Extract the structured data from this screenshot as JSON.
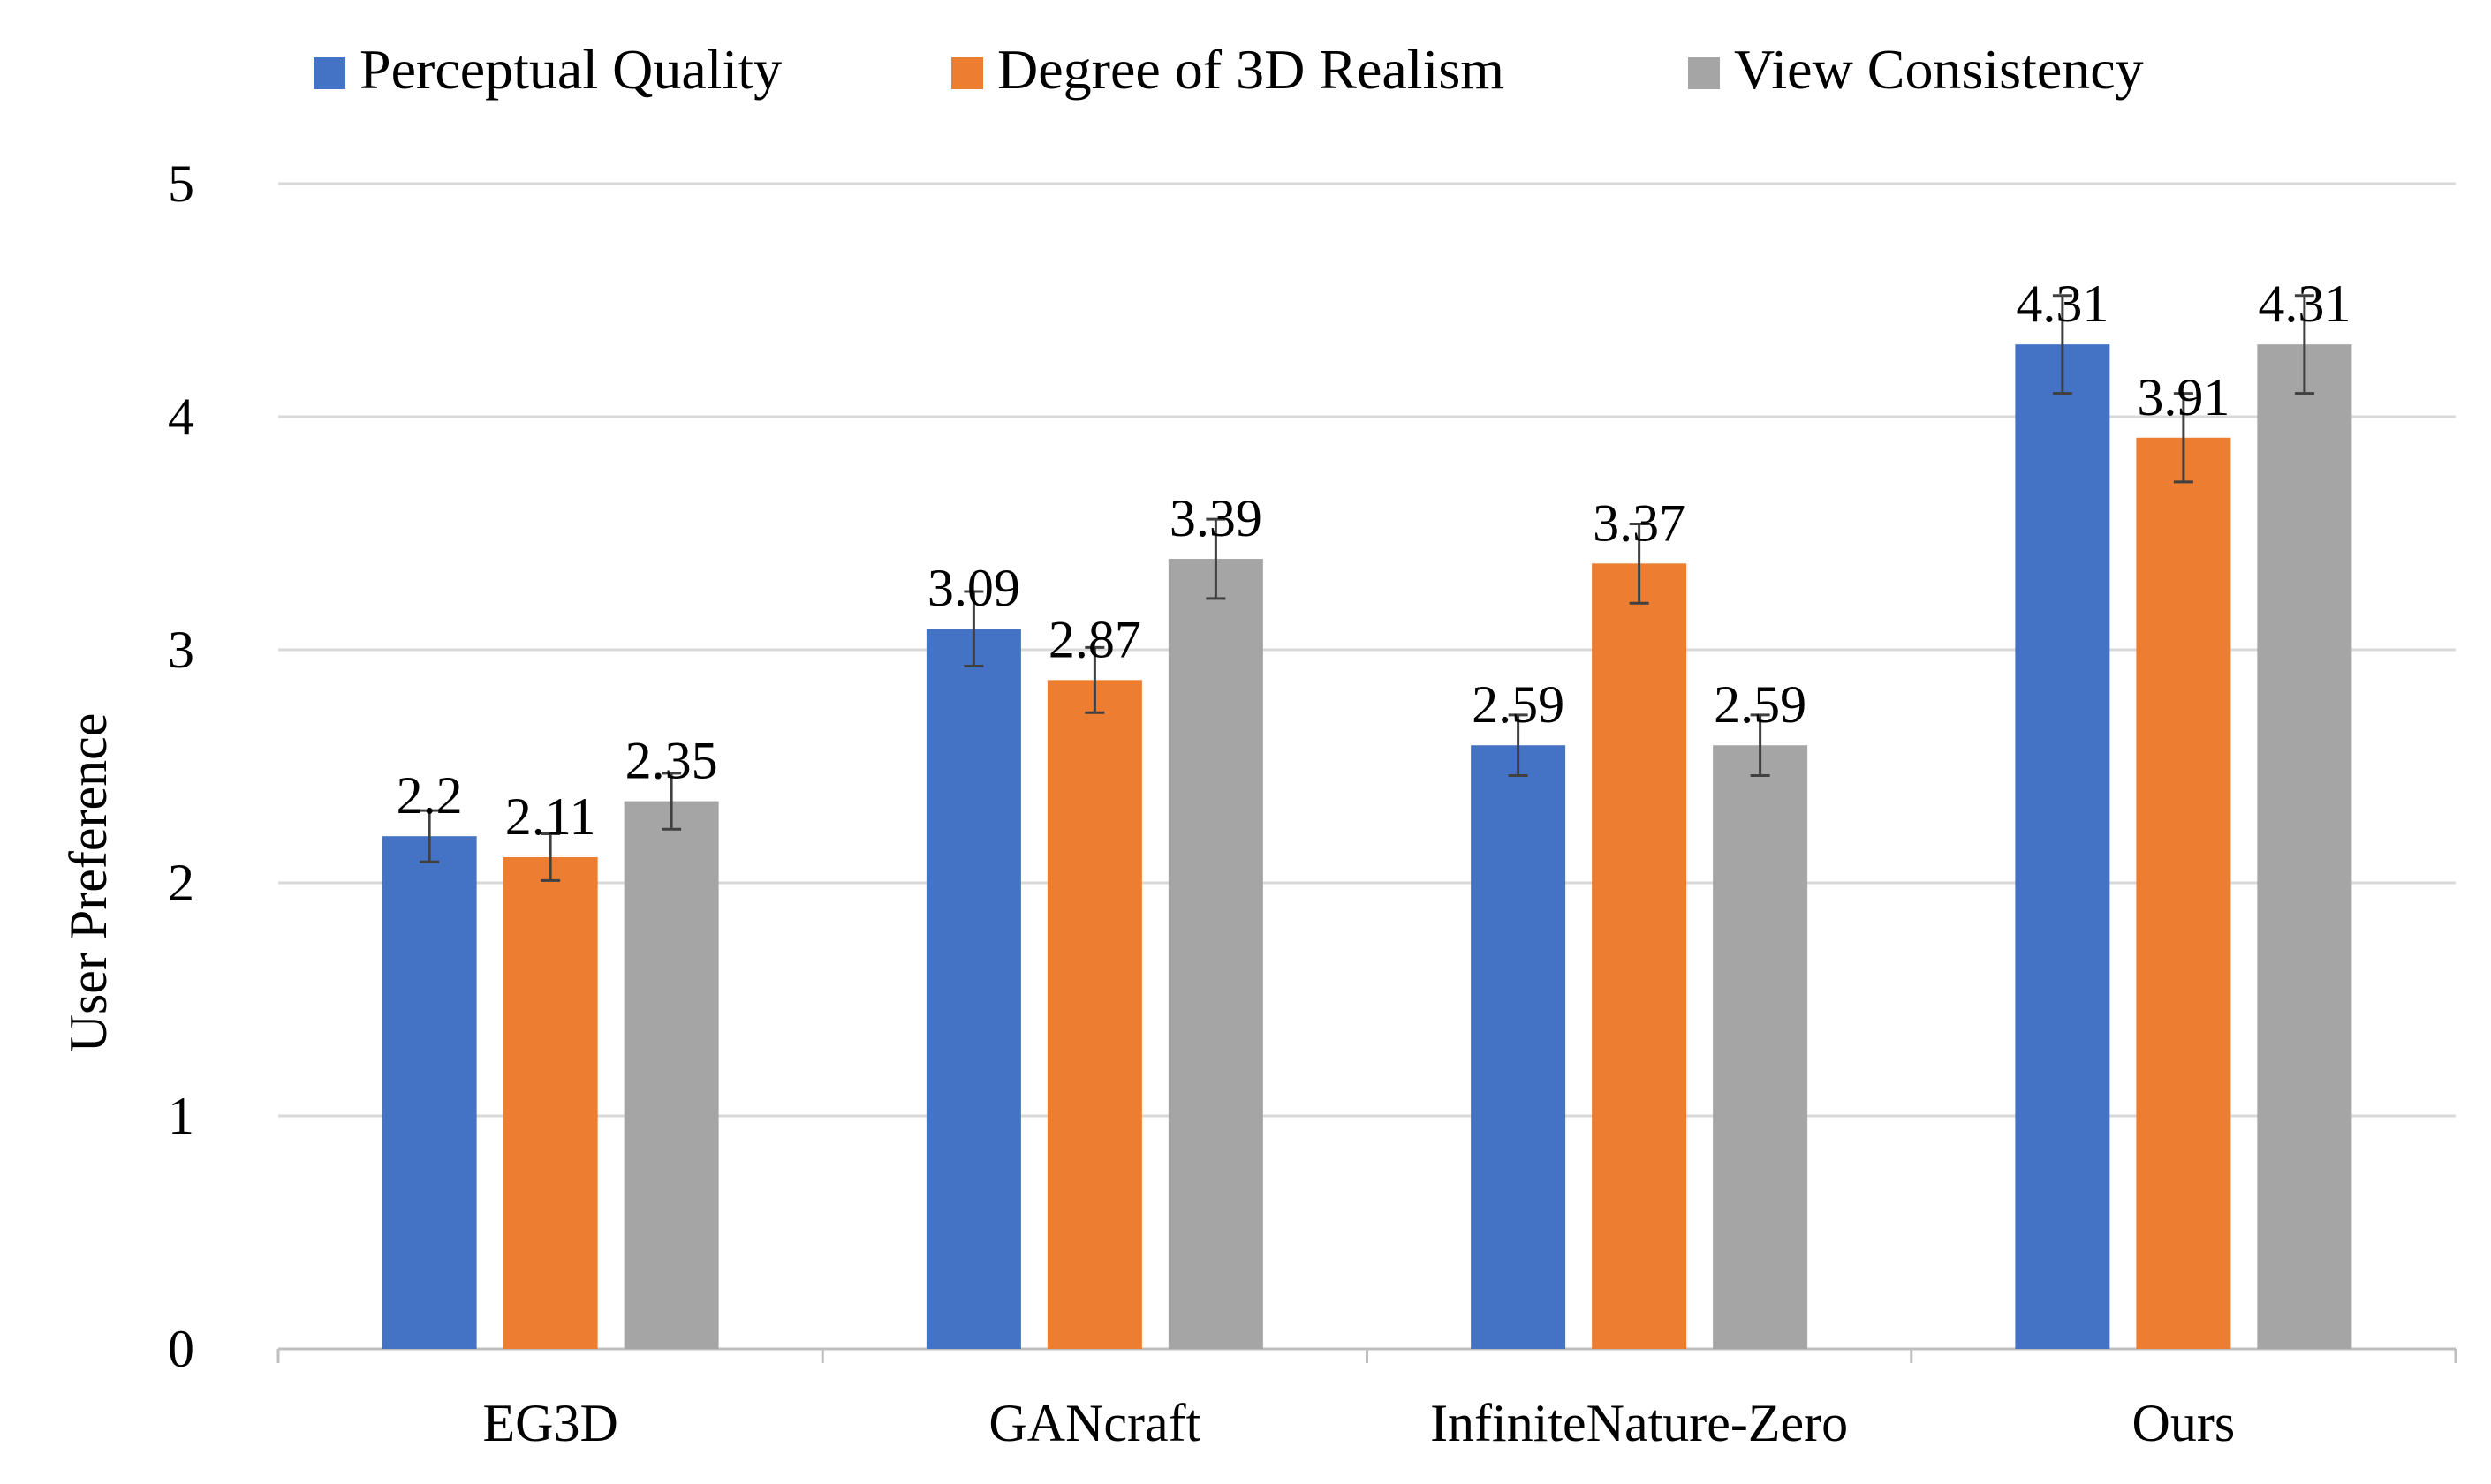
{
  "chart_data": {
    "type": "bar",
    "title": "",
    "xlabel": "",
    "ylabel": "User Preference",
    "ylim": [
      0,
      5
    ],
    "yticks": [
      0,
      1,
      2,
      3,
      4,
      5
    ],
    "grid": true,
    "legend_position": "top",
    "categories": [
      "EG3D",
      "GANcraft",
      "InfiniteNature-Zero",
      "Ours"
    ],
    "series": [
      {
        "name": "Perceptual Quality",
        "color": "#4472C4",
        "values": [
          2.2,
          3.09,
          2.59,
          4.31
        ],
        "labels": [
          "2.2",
          "3.09",
          "2.59",
          "4.31"
        ],
        "errors": [
          0.11,
          0.16,
          0.13,
          0.21
        ]
      },
      {
        "name": "Degree of 3D Realism",
        "color": "#ED7D31",
        "values": [
          2.11,
          2.87,
          3.37,
          3.91
        ],
        "labels": [
          "2.11",
          "2.87",
          "3.37",
          "3.91"
        ],
        "errors": [
          0.1,
          0.14,
          0.17,
          0.19
        ]
      },
      {
        "name": "View Consistency",
        "color": "#A5A5A5",
        "values": [
          2.35,
          3.39,
          2.59,
          4.31
        ],
        "labels": [
          "2.35",
          "3.39",
          "2.59",
          "4.31"
        ],
        "errors": [
          0.12,
          0.17,
          0.13,
          0.21
        ]
      }
    ]
  },
  "colors": {
    "grid": "#D9D9D9",
    "axis": "#BFBFBF",
    "error_bar": "#404040"
  }
}
